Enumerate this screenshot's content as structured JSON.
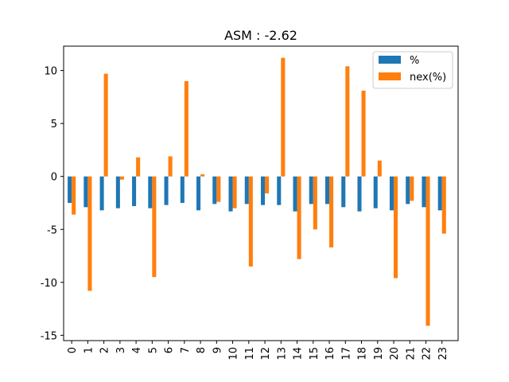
{
  "chart_data": {
    "type": "bar",
    "title": "ASM : -2.62",
    "xlabel": "",
    "ylabel": "",
    "categories": [
      "0",
      "1",
      "2",
      "3",
      "4",
      "5",
      "6",
      "7",
      "8",
      "9",
      "10",
      "11",
      "12",
      "13",
      "14",
      "15",
      "16",
      "17",
      "18",
      "19",
      "20",
      "21",
      "22",
      "23"
    ],
    "series": [
      {
        "name": "%",
        "color": "#1f77b4",
        "values": [
          -2.5,
          -2.9,
          -3.2,
          -3.0,
          -2.8,
          -3.0,
          -2.7,
          -2.5,
          -3.2,
          -2.6,
          -3.3,
          -2.6,
          -2.7,
          -2.7,
          -3.3,
          -2.6,
          -2.6,
          -2.9,
          -3.3,
          -3.0,
          -3.2,
          -2.6,
          -2.9,
          -3.2
        ]
      },
      {
        "name": "nex(%)",
        "color": "#ff7f0e",
        "values": [
          -3.6,
          -10.8,
          9.7,
          -0.3,
          1.8,
          -9.5,
          1.9,
          9.0,
          0.2,
          -2.4,
          -3.0,
          -8.5,
          -1.6,
          11.2,
          -7.8,
          -5.0,
          -6.7,
          10.4,
          8.1,
          1.5,
          -9.6,
          -2.3,
          -14.1,
          -5.4
        ]
      }
    ],
    "ylim": [
      -15.5,
      12.3
    ],
    "yticks": [
      -15,
      -10,
      -5,
      0,
      5,
      10
    ],
    "grid": false,
    "legend": "upper-right"
  }
}
